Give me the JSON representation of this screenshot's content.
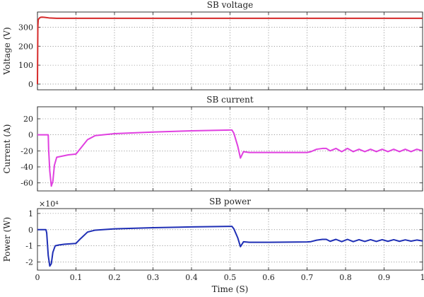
{
  "chart_data": [
    {
      "type": "line",
      "title": "SB voltage",
      "xlabel": "",
      "ylabel": "Voltage (V)",
      "xlim": [
        0,
        1
      ],
      "ylim": [
        -30,
        380
      ],
      "xticks": [
        0,
        0.1,
        0.2,
        0.3,
        0.4,
        0.5,
        0.6,
        0.7,
        0.8,
        0.9,
        1
      ],
      "yticks": [
        0,
        100,
        200,
        300
      ],
      "grid": true,
      "series": [
        {
          "color": "#d62a2a",
          "x": [
            0,
            0.001,
            0.002,
            0.005,
            0.008,
            0.012,
            0.018,
            0.03,
            0.05,
            0.1,
            0.3,
            0.5,
            0.7,
            0.9,
            1.0
          ],
          "y": [
            0,
            300,
            340,
            348,
            352,
            353,
            352,
            349,
            347,
            347,
            347,
            347,
            347,
            347,
            347
          ]
        }
      ]
    },
    {
      "type": "line",
      "title": "SB current",
      "xlabel": "",
      "ylabel": "Current (A)",
      "xlim": [
        0,
        1
      ],
      "ylim": [
        -70,
        35
      ],
      "xticks": [
        0,
        0.1,
        0.2,
        0.3,
        0.4,
        0.5,
        0.6,
        0.7,
        0.8,
        0.9,
        1
      ],
      "yticks": [
        -60,
        -40,
        -20,
        0,
        20
      ],
      "grid": true,
      "series": [
        {
          "color": "#e040e0",
          "x": [
            0,
            0.028,
            0.029,
            0.032,
            0.036,
            0.04,
            0.044,
            0.05,
            0.06,
            0.08,
            0.1,
            0.11,
            0.13,
            0.15,
            0.2,
            0.3,
            0.4,
            0.5,
            0.505,
            0.51,
            0.52,
            0.527,
            0.535,
            0.55,
            0.6,
            0.65,
            0.7,
            0.71,
            0.725,
            0.74,
            0.75,
            0.76,
            0.775,
            0.79,
            0.805,
            0.82,
            0.835,
            0.85,
            0.865,
            0.88,
            0.895,
            0.91,
            0.925,
            0.94,
            0.955,
            0.97,
            0.985,
            1.0
          ],
          "y": [
            0,
            0,
            -18,
            -45,
            -64,
            -58,
            -38,
            -28,
            -27,
            -25,
            -24,
            -18,
            -6,
            -1,
            1.5,
            3.5,
            5,
            6,
            6,
            2,
            -14,
            -29,
            -21,
            -22,
            -22,
            -22,
            -22,
            -21,
            -18,
            -17,
            -17,
            -20,
            -17,
            -21,
            -17,
            -21,
            -18,
            -21,
            -18,
            -21,
            -18,
            -21,
            -18,
            -21,
            -18,
            -21,
            -18,
            -20
          ]
        }
      ]
    },
    {
      "type": "line",
      "title": "SB power",
      "xlabel": "Time (S)",
      "ylabel": "Power (W)",
      "y_multiplier_label": "×10⁴",
      "xlim": [
        0,
        1
      ],
      "ylim": [
        -2.5,
        1.3
      ],
      "xticks": [
        0,
        0.1,
        0.2,
        0.3,
        0.4,
        0.5,
        0.6,
        0.7,
        0.8,
        0.9,
        1
      ],
      "xticklabels": [
        "0",
        "0.1",
        "0.2",
        "0.3",
        "0.4",
        "0.5",
        "0.6",
        "0.7",
        "0.8",
        "0.9",
        "1"
      ],
      "yticks": [
        -2,
        -1,
        0,
        1
      ],
      "grid": true,
      "series": [
        {
          "color": "#1f2fb5",
          "x": [
            0,
            0.022,
            0.024,
            0.028,
            0.032,
            0.036,
            0.04,
            0.046,
            0.055,
            0.07,
            0.1,
            0.11,
            0.13,
            0.15,
            0.2,
            0.3,
            0.4,
            0.5,
            0.505,
            0.51,
            0.52,
            0.527,
            0.535,
            0.55,
            0.6,
            0.65,
            0.7,
            0.71,
            0.725,
            0.74,
            0.75,
            0.76,
            0.775,
            0.79,
            0.805,
            0.82,
            0.835,
            0.85,
            0.865,
            0.88,
            0.895,
            0.91,
            0.925,
            0.94,
            0.955,
            0.97,
            0.985,
            1.0
          ],
          "y": [
            0,
            0,
            -0.2,
            -1.6,
            -2.25,
            -2.1,
            -1.4,
            -1.0,
            -0.95,
            -0.9,
            -0.85,
            -0.6,
            -0.15,
            -0.03,
            0.05,
            0.12,
            0.17,
            0.2,
            0.2,
            0.05,
            -0.5,
            -1.05,
            -0.75,
            -0.78,
            -0.78,
            -0.77,
            -0.76,
            -0.74,
            -0.65,
            -0.6,
            -0.6,
            -0.72,
            -0.6,
            -0.74,
            -0.6,
            -0.74,
            -0.62,
            -0.73,
            -0.62,
            -0.73,
            -0.62,
            -0.72,
            -0.62,
            -0.72,
            -0.63,
            -0.71,
            -0.64,
            -0.7
          ]
        }
      ]
    }
  ]
}
